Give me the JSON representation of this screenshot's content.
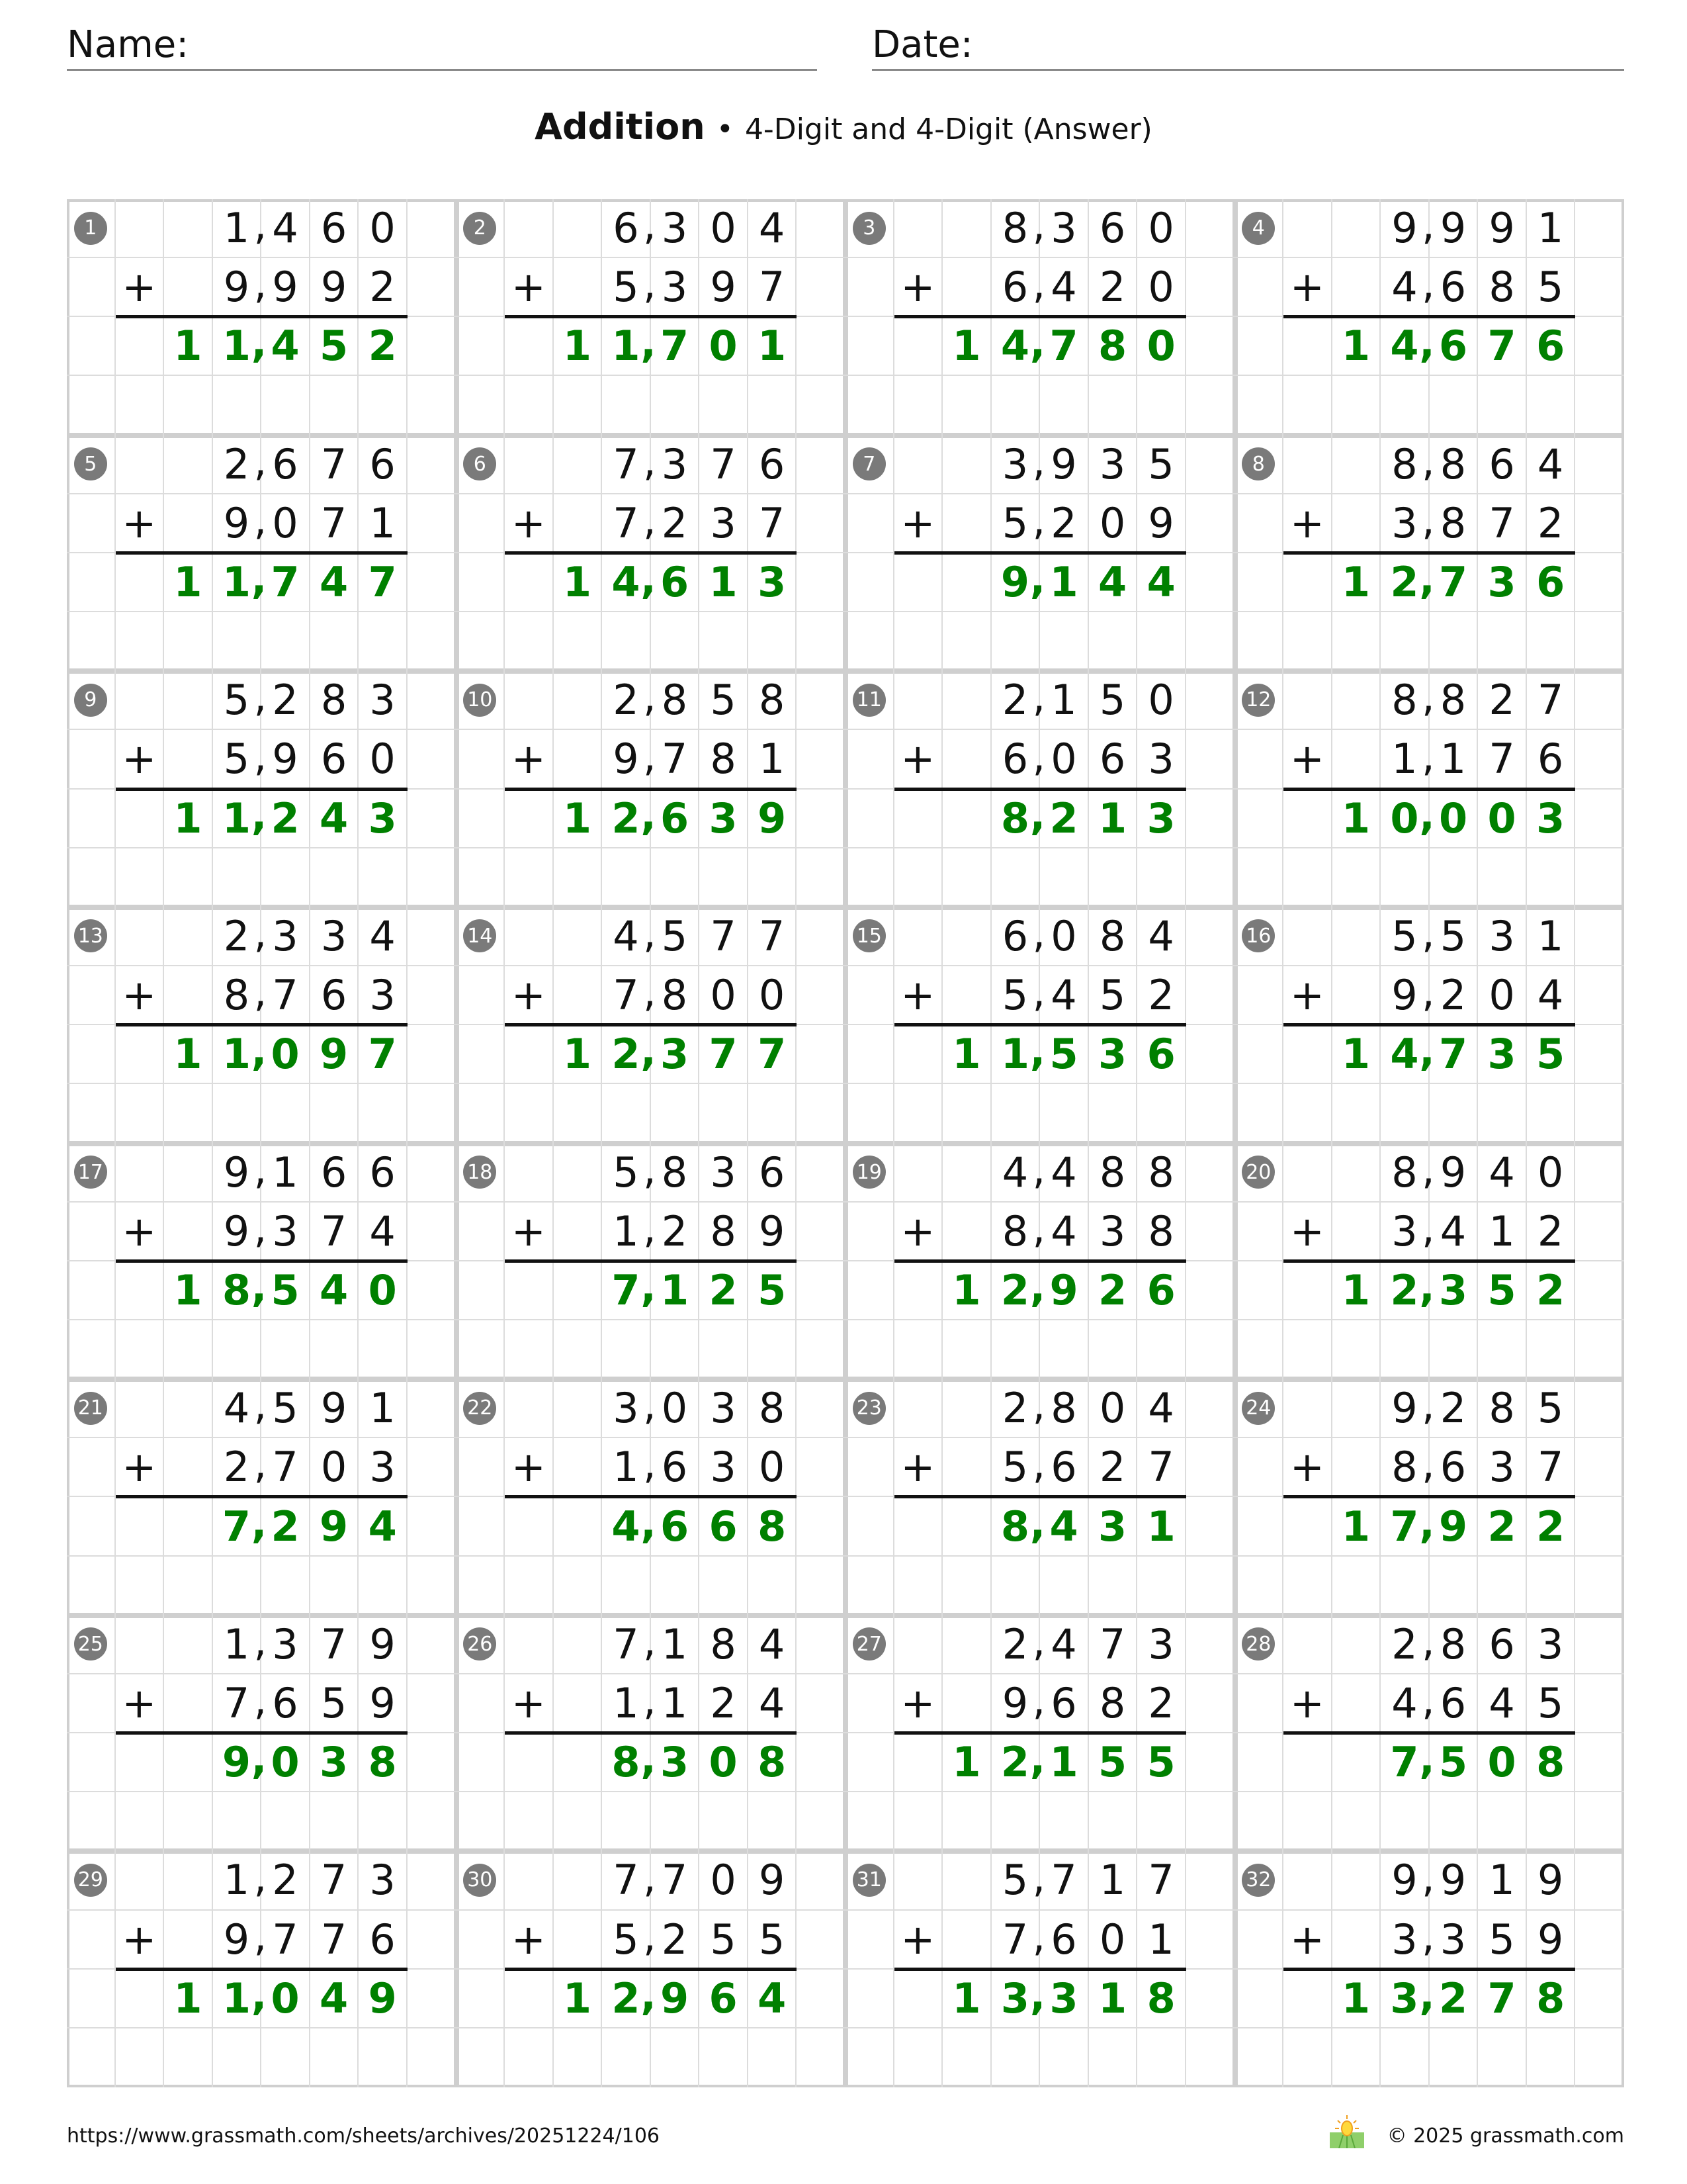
{
  "header": {
    "name_label": "Name:",
    "date_label": "Date:"
  },
  "title": {
    "main": "Addition",
    "separator": "•",
    "subtitle": "4-Digit and 4-Digit (Answer)"
  },
  "operator": "+",
  "colors": {
    "answer": "#008000",
    "badge": "#7a7a7a",
    "grid": "#dcdcdc"
  },
  "problems": [
    {
      "n": "1",
      "top": "1,460",
      "bottom": "9,992",
      "answer": "11,452"
    },
    {
      "n": "2",
      "top": "6,304",
      "bottom": "5,397",
      "answer": "11,701"
    },
    {
      "n": "3",
      "top": "8,360",
      "bottom": "6,420",
      "answer": "14,780"
    },
    {
      "n": "4",
      "top": "9,991",
      "bottom": "4,685",
      "answer": "14,676"
    },
    {
      "n": "5",
      "top": "2,676",
      "bottom": "9,071",
      "answer": "11,747"
    },
    {
      "n": "6",
      "top": "7,376",
      "bottom": "7,237",
      "answer": "14,613"
    },
    {
      "n": "7",
      "top": "3,935",
      "bottom": "5,209",
      "answer": "9,144"
    },
    {
      "n": "8",
      "top": "8,864",
      "bottom": "3,872",
      "answer": "12,736"
    },
    {
      "n": "9",
      "top": "5,283",
      "bottom": "5,960",
      "answer": "11,243"
    },
    {
      "n": "10",
      "top": "2,858",
      "bottom": "9,781",
      "answer": "12,639"
    },
    {
      "n": "11",
      "top": "2,150",
      "bottom": "6,063",
      "answer": "8,213"
    },
    {
      "n": "12",
      "top": "8,827",
      "bottom": "1,176",
      "answer": "10,003"
    },
    {
      "n": "13",
      "top": "2,334",
      "bottom": "8,763",
      "answer": "11,097"
    },
    {
      "n": "14",
      "top": "4,577",
      "bottom": "7,800",
      "answer": "12,377"
    },
    {
      "n": "15",
      "top": "6,084",
      "bottom": "5,452",
      "answer": "11,536"
    },
    {
      "n": "16",
      "top": "5,531",
      "bottom": "9,204",
      "answer": "14,735"
    },
    {
      "n": "17",
      "top": "9,166",
      "bottom": "9,374",
      "answer": "18,540"
    },
    {
      "n": "18",
      "top": "5,836",
      "bottom": "1,289",
      "answer": "7,125"
    },
    {
      "n": "19",
      "top": "4,488",
      "bottom": "8,438",
      "answer": "12,926"
    },
    {
      "n": "20",
      "top": "8,940",
      "bottom": "3,412",
      "answer": "12,352"
    },
    {
      "n": "21",
      "top": "4,591",
      "bottom": "2,703",
      "answer": "7,294"
    },
    {
      "n": "22",
      "top": "3,038",
      "bottom": "1,630",
      "answer": "4,668"
    },
    {
      "n": "23",
      "top": "2,804",
      "bottom": "5,627",
      "answer": "8,431"
    },
    {
      "n": "24",
      "top": "9,285",
      "bottom": "8,637",
      "answer": "17,922"
    },
    {
      "n": "25",
      "top": "1,379",
      "bottom": "7,659",
      "answer": "9,038"
    },
    {
      "n": "26",
      "top": "7,184",
      "bottom": "1,124",
      "answer": "8,308"
    },
    {
      "n": "27",
      "top": "2,473",
      "bottom": "9,682",
      "answer": "12,155"
    },
    {
      "n": "28",
      "top": "2,863",
      "bottom": "4,645",
      "answer": "7,508"
    },
    {
      "n": "29",
      "top": "1,273",
      "bottom": "9,776",
      "answer": "11,049"
    },
    {
      "n": "30",
      "top": "7,709",
      "bottom": "5,255",
      "answer": "12,964"
    },
    {
      "n": "31",
      "top": "5,717",
      "bottom": "7,601",
      "answer": "13,318"
    },
    {
      "n": "32",
      "top": "9,919",
      "bottom": "3,359",
      "answer": "13,278"
    }
  ],
  "footer": {
    "url": "https://www.grassmath.com/sheets/archives/20251224/106",
    "copyright": "© 2025 grassmath.com",
    "logo_icon": "sun-over-grass-icon"
  }
}
